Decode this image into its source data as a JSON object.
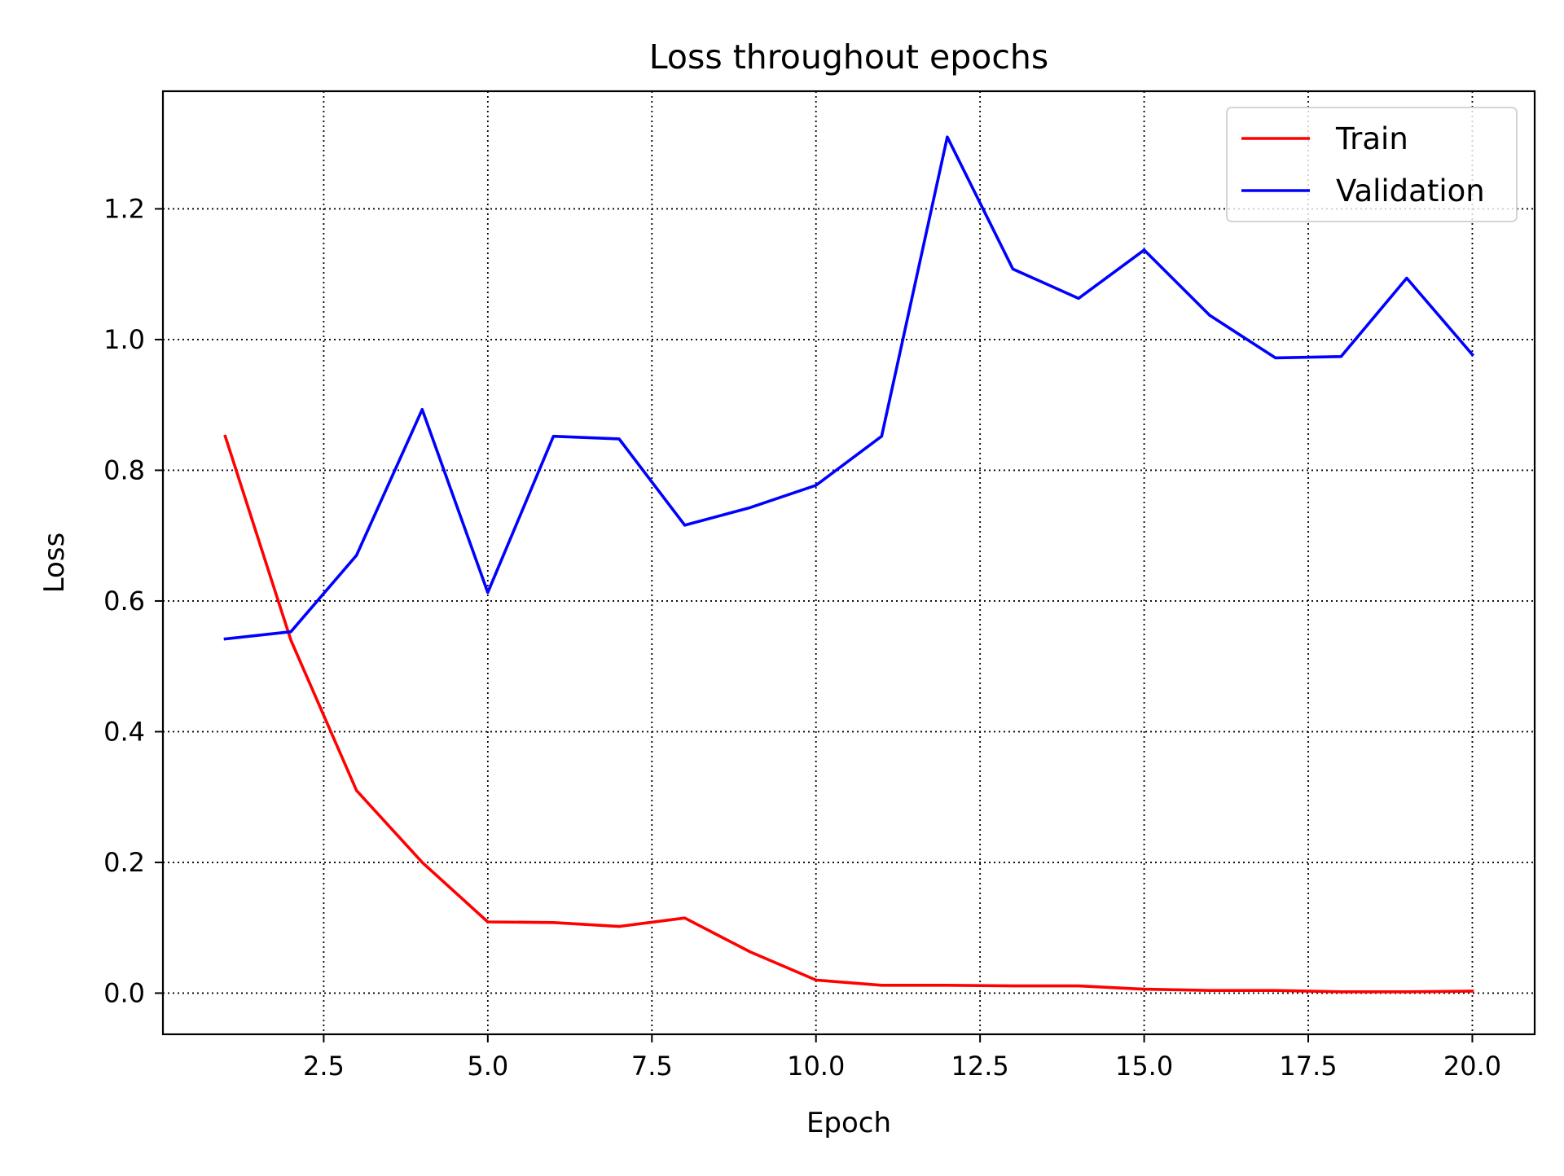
{
  "chart_data": {
    "type": "line",
    "title": "Loss throughout epochs",
    "xlabel": "Epoch",
    "ylabel": "Loss",
    "xlim": [
      0.05,
      20.95
    ],
    "ylim": [
      -0.063,
      1.38
    ],
    "xticks": [
      2.5,
      5.0,
      7.5,
      10.0,
      12.5,
      15.0,
      17.5,
      20.0
    ],
    "xtick_labels": [
      "2.5",
      "5.0",
      "7.5",
      "10.0",
      "12.5",
      "15.0",
      "17.5",
      "20.0"
    ],
    "yticks": [
      0.0,
      0.2,
      0.4,
      0.6,
      0.8,
      1.0,
      1.2
    ],
    "ytick_labels": [
      "0.0",
      "0.2",
      "0.4",
      "0.6",
      "0.8",
      "1.0",
      "1.2"
    ],
    "grid": true,
    "legend_position": "top-right",
    "x": [
      1,
      2,
      3,
      4,
      5,
      6,
      7,
      8,
      9,
      10,
      11,
      12,
      13,
      14,
      15,
      16,
      17,
      18,
      19,
      20
    ],
    "series": [
      {
        "name": "Train",
        "color": "#ff0000",
        "values": [
          0.852,
          0.54,
          0.31,
          0.2,
          0.109,
          0.108,
          0.102,
          0.115,
          0.063,
          0.02,
          0.012,
          0.012,
          0.011,
          0.011,
          0.006,
          0.004,
          0.004,
          0.002,
          0.002,
          0.003
        ]
      },
      {
        "name": "Validation",
        "color": "#0000ff",
        "values": [
          0.542,
          0.553,
          0.67,
          0.893,
          0.613,
          0.852,
          0.848,
          0.716,
          0.743,
          0.777,
          0.852,
          1.31,
          1.108,
          1.063,
          1.137,
          1.037,
          0.972,
          0.974,
          1.094,
          0.977
        ]
      }
    ]
  }
}
